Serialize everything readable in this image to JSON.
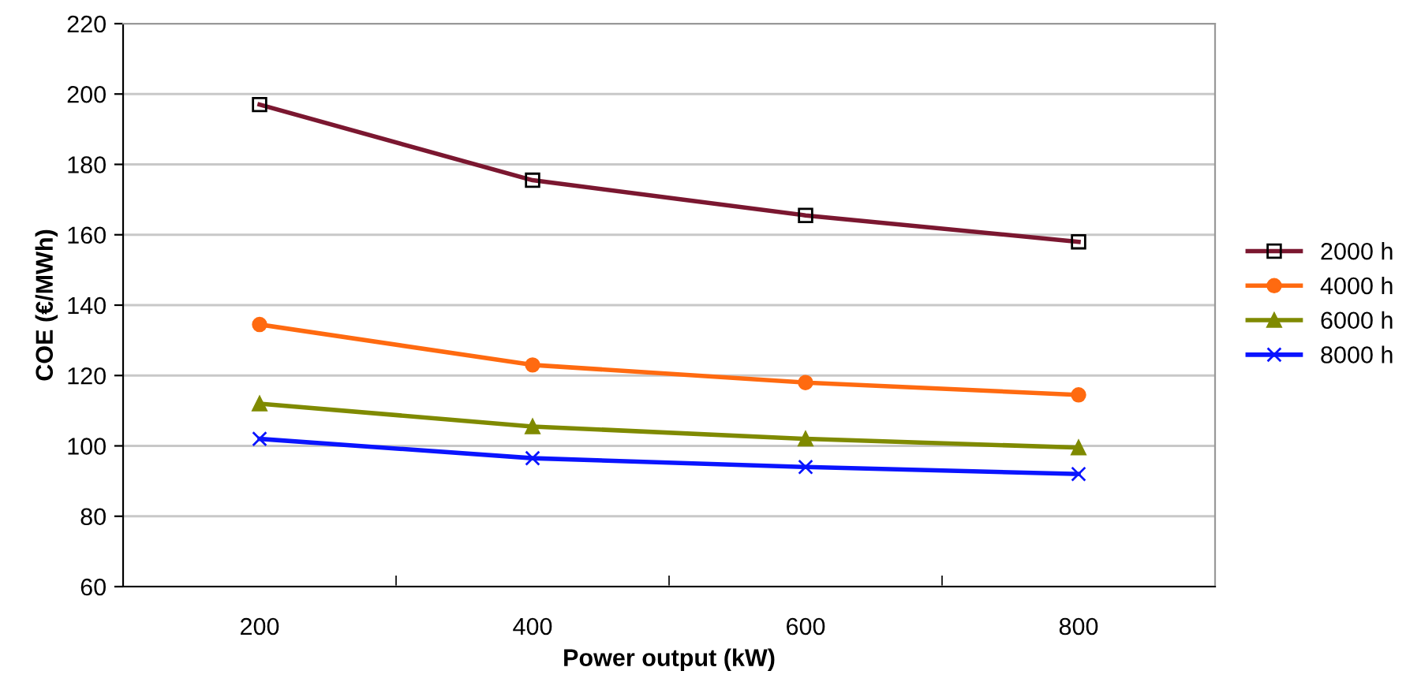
{
  "chart_data": {
    "type": "line",
    "xlabel": "Power output (kW)",
    "ylabel": "COE (€/MWh)",
    "categories": [
      "200",
      "400",
      "600",
      "800"
    ],
    "series": [
      {
        "name": "2000 h",
        "color": "#7b1730",
        "marker": "square",
        "values": [
          197,
          175.5,
          165.5,
          158
        ]
      },
      {
        "name": "4000 h",
        "color": "#ff6a10",
        "marker": "circle",
        "values": [
          134.5,
          123,
          118,
          114.5
        ]
      },
      {
        "name": "6000 h",
        "color": "#7f8a00",
        "marker": "triangle",
        "values": [
          112,
          105.5,
          102,
          99.5
        ]
      },
      {
        "name": "8000 h",
        "color": "#0a14ff",
        "marker": "cross",
        "values": [
          102,
          96.5,
          94,
          92
        ]
      }
    ],
    "ylim": [
      60,
      220
    ],
    "yticks": [
      60,
      80,
      100,
      120,
      140,
      160,
      180,
      200,
      220
    ],
    "grid": "y",
    "legend": "right",
    "line_style": "solid"
  }
}
